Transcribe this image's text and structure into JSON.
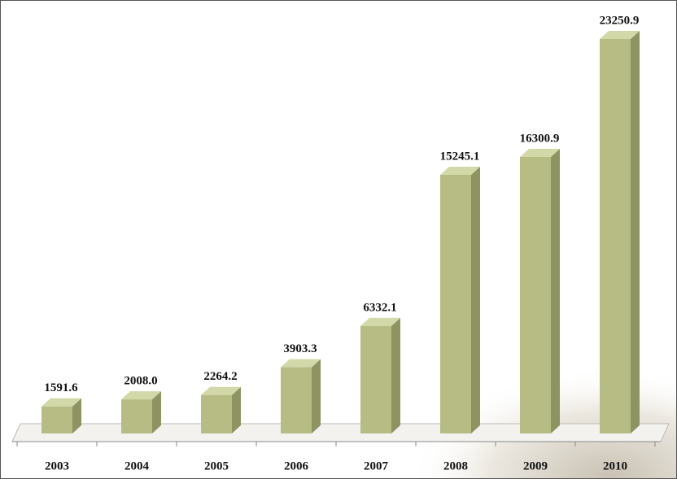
{
  "chart_data": {
    "type": "bar3d",
    "categories": [
      "2003",
      "2004",
      "2005",
      "2006",
      "2007",
      "2008",
      "2009",
      "2010"
    ],
    "values": [
      1591.6,
      2008.0,
      2264.2,
      3903.3,
      6332.1,
      15245.1,
      16300.9,
      23250.9
    ],
    "value_labels": [
      "1591.6",
      "2008.0",
      "2264.2",
      "3903.3",
      "6332.1",
      "15245.1",
      "16300.9",
      "23250.9"
    ],
    "color": "#b6bc84"
  }
}
